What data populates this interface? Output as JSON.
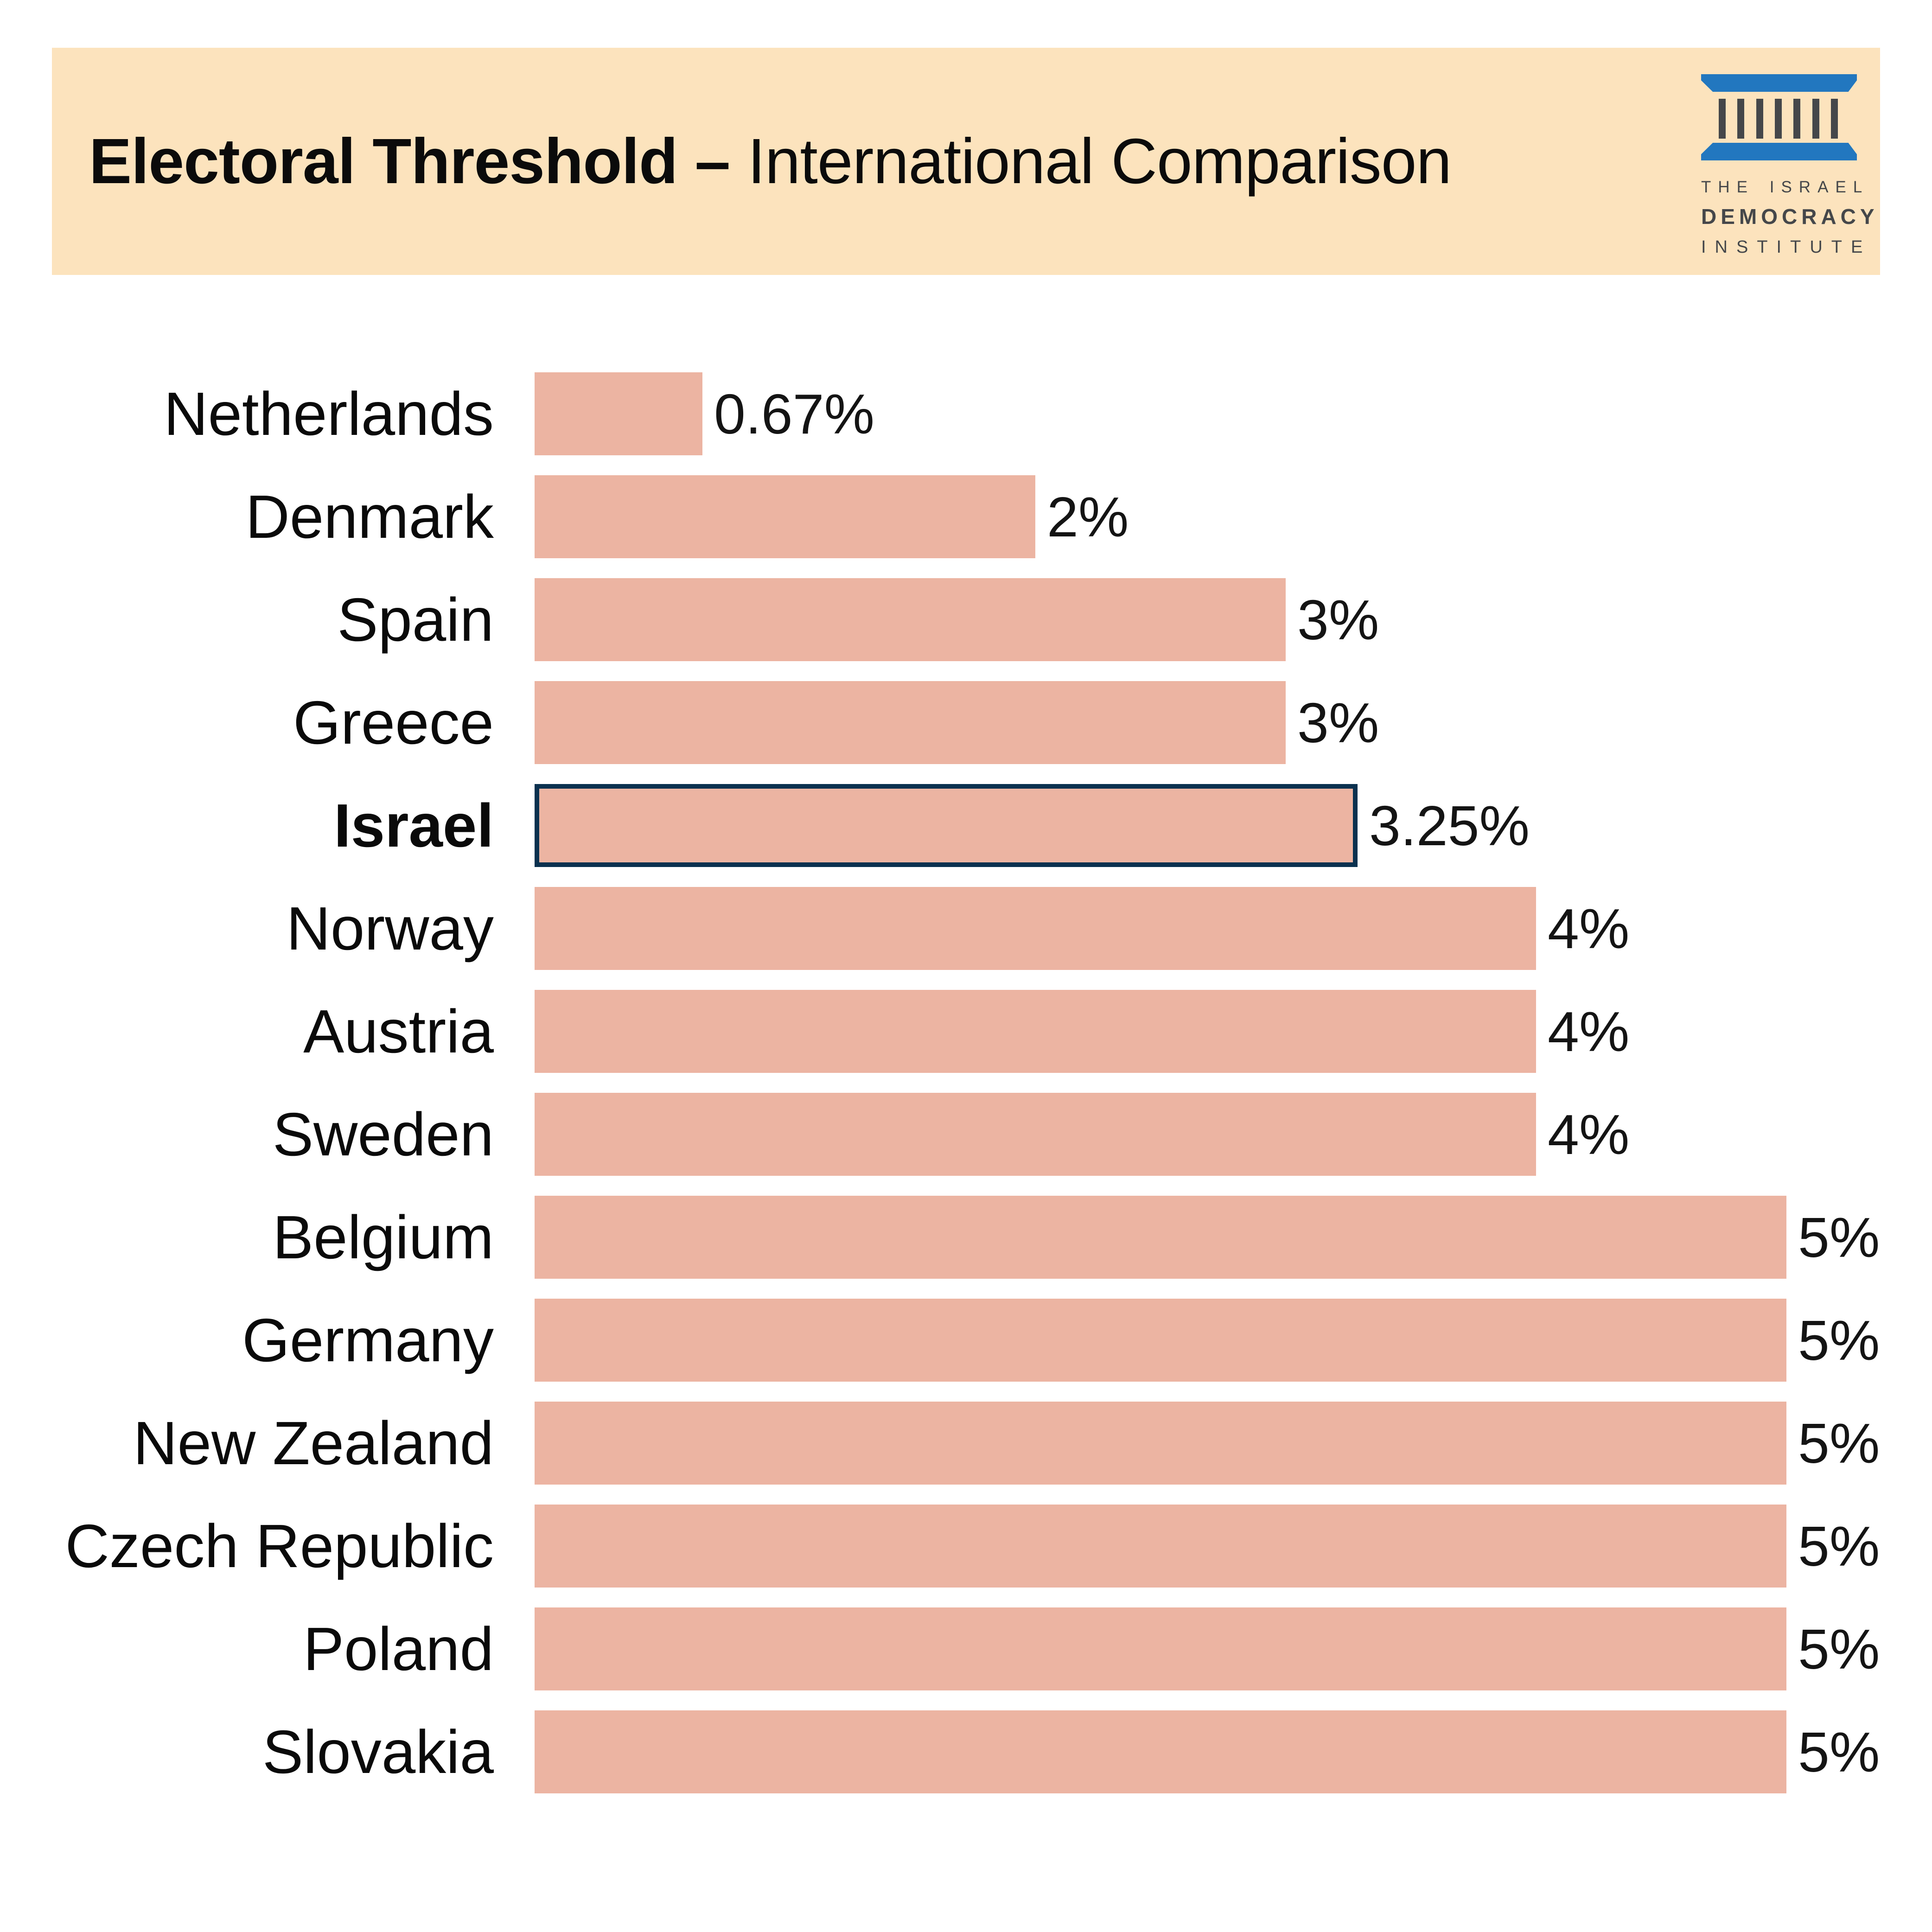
{
  "header": {
    "title_bold": "Electoral Threshold –",
    "title_regular": "International Comparison",
    "background": "#fce3bd"
  },
  "logo": {
    "name": "The Israel Democracy Institute",
    "lines": [
      "THE ISRAEL",
      "DEMOCRACY",
      "INSTITUTE"
    ],
    "columns_count": 7,
    "blue": "#2277bf",
    "gray": "#45474a"
  },
  "chart_data": {
    "type": "bar",
    "orientation": "horizontal",
    "title": "Electoral Threshold – International Comparison",
    "categories": [
      "Netherlands",
      "Denmark",
      "Spain",
      "Greece",
      "Israel",
      "Norway",
      "Austria",
      "Sweden",
      "Belgium",
      "Germany",
      "New Zealand",
      "Czech Republic",
      "Poland",
      "Slovakia"
    ],
    "values": [
      0.67,
      2,
      3,
      3,
      3.25,
      4,
      4,
      4,
      5,
      5,
      5,
      5,
      5,
      5
    ],
    "value_labels": [
      "0.67%",
      "2%",
      "3%",
      "3%",
      "3.25%",
      "4%",
      "4%",
      "4%",
      "5%",
      "5%",
      "5%",
      "5%",
      "5%",
      "5%"
    ],
    "highlight_category": "Israel",
    "xlim": [
      0,
      5
    ],
    "grid": false,
    "legend": false,
    "bar_color": "#ecb4a2",
    "highlight_border_color": "#0a314f",
    "label_color": "#0a0a0a"
  }
}
